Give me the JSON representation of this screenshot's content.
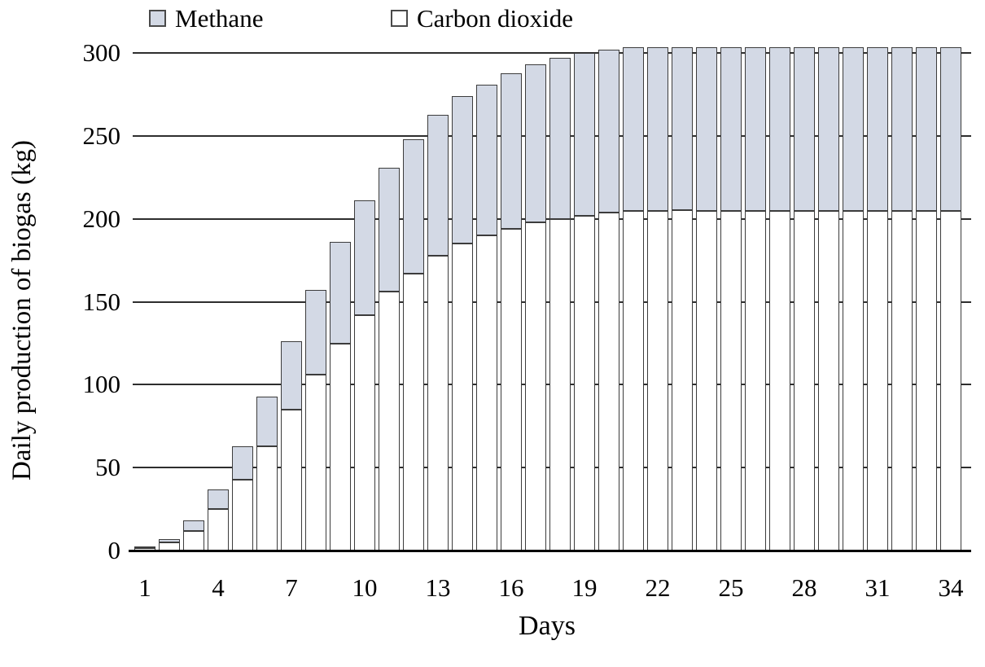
{
  "figure": {
    "legend": {
      "items": [
        {
          "label": "Methane",
          "swatch_color": "#d3d9e5"
        },
        {
          "label": "Carbon dioxide",
          "swatch_color": "#ffffff"
        }
      ]
    },
    "y_axis": {
      "title": "Daily production of biogas (kg)",
      "tick_labels": [
        "0",
        "50",
        "100",
        "150",
        "200",
        "250",
        "300"
      ]
    },
    "x_axis": {
      "title": "Days",
      "tick_labels": [
        "1",
        "4",
        "7",
        "10",
        "13",
        "16",
        "19",
        "22",
        "25",
        "28",
        "31",
        "34"
      ]
    }
  },
  "colors": {
    "methane_fill": "#d3d9e5",
    "carbon_dioxide_fill": "#ffffff",
    "bar_border": "#3c3c3c",
    "gridline": "#2e2e2e",
    "axis_line": "#000000",
    "text": "#000000"
  },
  "chart_data": {
    "type": "bar",
    "stacked": true,
    "xlabel": "Days",
    "ylabel": "Daily production of biogas (kg)",
    "x": [
      1,
      2,
      3,
      4,
      5,
      6,
      7,
      8,
      9,
      10,
      11,
      12,
      13,
      14,
      15,
      16,
      17,
      18,
      19,
      20,
      21,
      22,
      23,
      24,
      25,
      26,
      27,
      28,
      29,
      30,
      31,
      32,
      33,
      34
    ],
    "series": [
      {
        "name": "Carbon dioxide",
        "color": "#ffffff",
        "values": [
          1.4,
          4.7,
          12,
          25,
          42.5,
          63,
          85,
          106,
          125,
          142,
          156,
          167,
          178,
          185,
          190,
          194,
          198,
          200,
          202,
          204,
          205,
          206,
          207,
          207,
          207,
          208,
          208,
          208,
          208,
          208,
          208,
          208,
          208,
          208
        ]
      },
      {
        "name": "Methane",
        "color": "#d3d9e5",
        "values": [
          0.6,
          2.3,
          6,
          12,
          20.5,
          30,
          41,
          51,
          61,
          69,
          75,
          81,
          85,
          89,
          91,
          94,
          95,
          97,
          98,
          98,
          99,
          99,
          99,
          100,
          100,
          100,
          100,
          100,
          100,
          100,
          100,
          100,
          100,
          100
        ]
      }
    ],
    "totals": [
      2,
      7,
      18,
      37,
      63,
      93,
      126,
      157,
      186,
      211,
      231,
      248,
      263,
      274,
      281,
      288,
      293,
      297,
      300,
      302,
      304,
      305,
      306,
      307,
      307,
      308,
      308,
      308,
      308,
      308,
      308,
      308,
      308,
      308
    ],
    "ylim": [
      0,
      300
    ],
    "ytick_step": 50,
    "grid": true,
    "legend_position": "top-left"
  }
}
